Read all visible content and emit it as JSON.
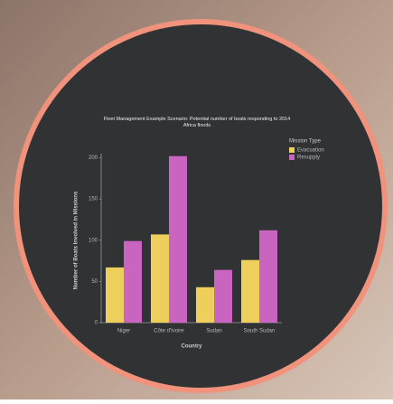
{
  "chart_data": {
    "type": "bar",
    "title": "Fleet Management Example Scenario: Potential number of boats responding to 2014 Africa floods",
    "categories": [
      "Niger",
      "Côte d'Ivoire",
      "Sudan",
      "South Sudan"
    ],
    "series": [
      {
        "name": "Evacuation",
        "color": "#efcf5c",
        "values": [
          67,
          107,
          43,
          76
        ]
      },
      {
        "name": "Resupply",
        "color": "#c965c0",
        "values": [
          99,
          202,
          64,
          112
        ]
      }
    ],
    "legend_title": "Mission Type",
    "legend_position": "right",
    "x_label": "Country",
    "y_label": "Number of Boats Involved in Missions",
    "ylim": [
      0,
      205
    ],
    "yticks": [
      0,
      50,
      100,
      150,
      200
    ]
  }
}
